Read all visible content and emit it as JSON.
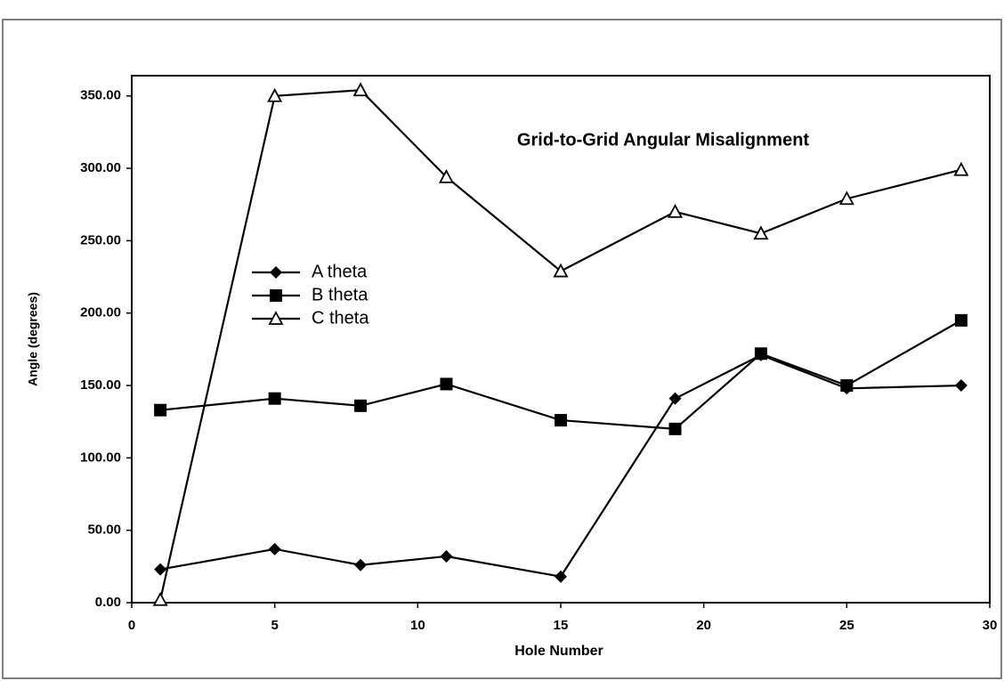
{
  "chart_data": {
    "type": "line",
    "title": "Grid-to-Grid Angular Misalignment",
    "x_label": "Hole Number",
    "y_label": "Angle (degrees)",
    "x": [
      1,
      5,
      8,
      11,
      15,
      19,
      22,
      25,
      29
    ],
    "series": [
      {
        "name": "A theta",
        "color": "#000000",
        "marker": "diamond",
        "values": [
          23,
          37,
          26,
          32,
          18,
          141,
          171,
          148,
          150
        ]
      },
      {
        "name": "B theta",
        "color": "#000000",
        "marker": "square",
        "values": [
          133,
          141,
          136,
          151,
          126,
          120,
          172,
          150,
          195
        ]
      },
      {
        "name": "C theta",
        "color": "#000000",
        "marker": "triangle",
        "values": [
          2,
          350,
          354,
          294,
          229,
          270,
          255,
          279,
          299
        ]
      }
    ],
    "xlim": [
      0,
      30
    ],
    "xticks": [
      0,
      5,
      10,
      15,
      20,
      25,
      30
    ],
    "ylim": [
      0,
      364
    ],
    "yticks": [
      {
        "value": 0,
        "label": "0.00"
      },
      {
        "value": 50,
        "label": "50.00"
      },
      {
        "value": 100,
        "label": "100.00"
      },
      {
        "value": 150,
        "label": "150.00"
      },
      {
        "value": 200,
        "label": "200.00"
      },
      {
        "value": 250,
        "label": "250.00"
      },
      {
        "value": 300,
        "label": "300.00"
      },
      {
        "value": 350,
        "label": "350.00"
      }
    ],
    "grid": false,
    "legend": "left"
  }
}
